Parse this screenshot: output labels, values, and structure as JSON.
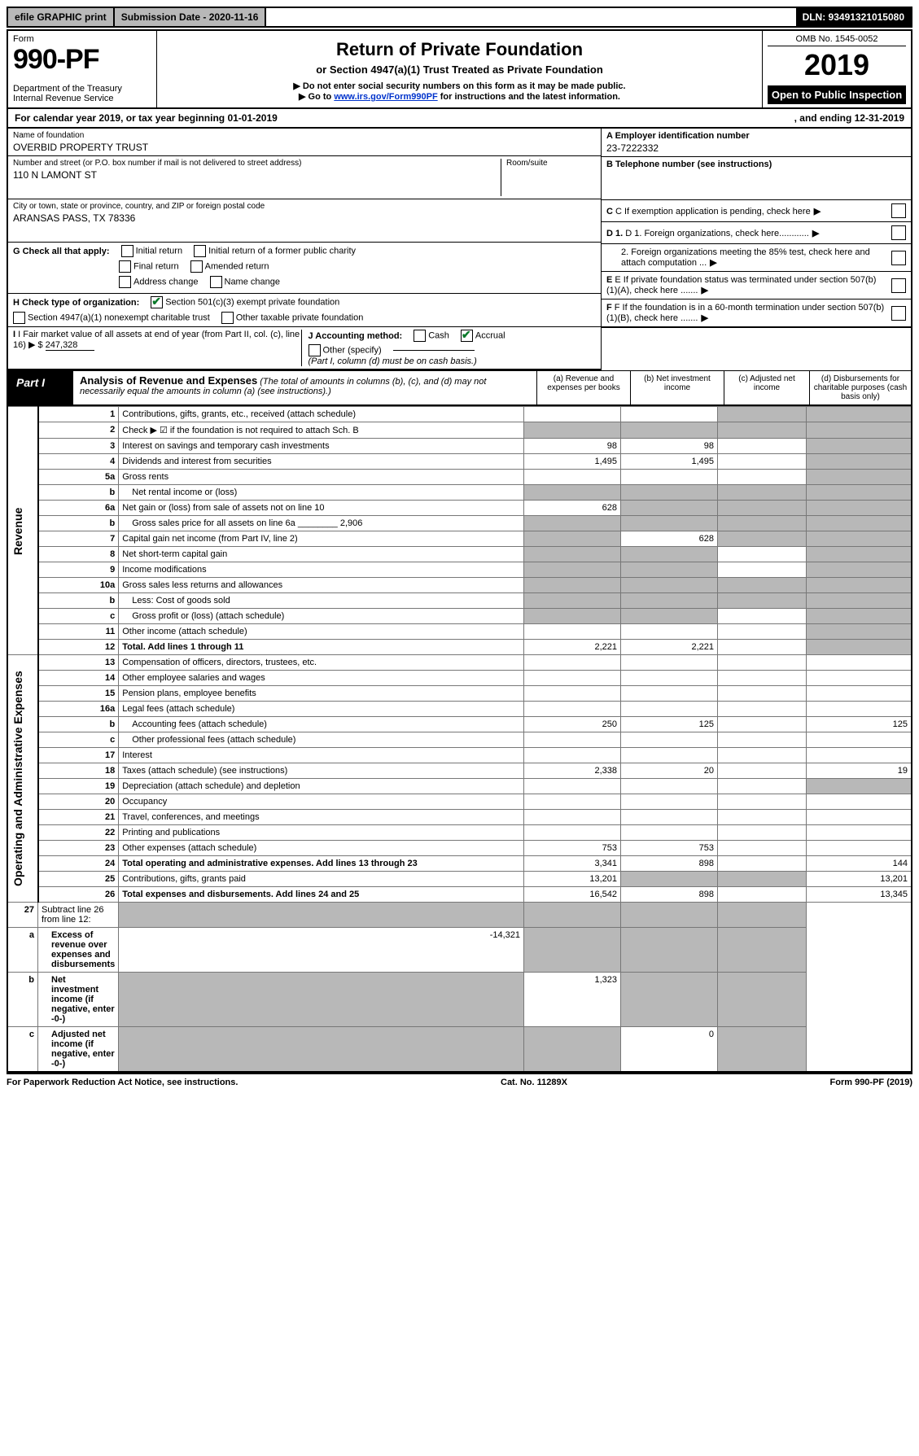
{
  "topbar": {
    "efile": "efile GRAPHIC print",
    "subdate_label": "Submission Date - 2020-11-16",
    "dln": "DLN: 93491321015080"
  },
  "header": {
    "form": "Form",
    "formno": "990-PF",
    "dept": "Department of the Treasury\nInternal Revenue Service",
    "title": "Return of Private Foundation",
    "subtitle": "or Section 4947(a)(1) Trust Treated as Private Foundation",
    "note1": "▶ Do not enter social security numbers on this form as it may be made public.",
    "note2_pre": "▶ Go to ",
    "note2_link": "www.irs.gov/Form990PF",
    "note2_post": " for instructions and the latest information.",
    "omb": "OMB No. 1545-0052",
    "year": "2019",
    "open": "Open to Public Inspection"
  },
  "calyear": {
    "left": "For calendar year 2019, or tax year beginning 01-01-2019",
    "right": ", and ending 12-31-2019"
  },
  "info": {
    "name_lbl": "Name of foundation",
    "name": "OVERBID PROPERTY TRUST",
    "addr_lbl": "Number and street (or P.O. box number if mail is not delivered to street address)",
    "room_lbl": "Room/suite",
    "addr": "110 N LAMONT ST",
    "city_lbl": "City or town, state or province, country, and ZIP or foreign postal code",
    "city": "ARANSAS PASS, TX  78336",
    "g_lbl": "G Check all that apply:",
    "g_opts": [
      "Initial return",
      "Initial return of a former public charity",
      "Final return",
      "Amended return",
      "Address change",
      "Name change"
    ],
    "h_lbl": "H Check type of organization:",
    "h_opt1": "Section 501(c)(3) exempt private foundation",
    "h_opt2": "Section 4947(a)(1) nonexempt charitable trust",
    "h_opt3": "Other taxable private foundation",
    "i_lbl": "I Fair market value of all assets at end of year (from Part II, col. (c), line 16) ▶ $",
    "i_val": "247,328",
    "j_lbl": "J Accounting method:",
    "j_cash": "Cash",
    "j_accrual": "Accrual",
    "j_other": "Other (specify)",
    "j_note": "(Part I, column (d) must be on cash basis.)",
    "a_lbl": "A Employer identification number",
    "a_val": "23-7222332",
    "b_lbl": "B Telephone number (see instructions)",
    "c_lbl": "C If exemption application is pending, check here",
    "d1_lbl": "D 1. Foreign organizations, check here............",
    "d2_lbl": "2. Foreign organizations meeting the 85% test, check here and attach computation ...",
    "e_lbl": "E If private foundation status was terminated under section 507(b)(1)(A), check here .......",
    "f_lbl": "F If the foundation is in a 60-month termination under section 507(b)(1)(B), check here ......."
  },
  "part1": {
    "label": "Part I",
    "title": "Analysis of Revenue and Expenses",
    "subtitle": "(The total of amounts in columns (b), (c), and (d) may not necessarily equal the amounts in column (a) (see instructions).)",
    "cols": {
      "a": "(a) Revenue and expenses per books",
      "b": "(b) Net investment income",
      "c": "(c) Adjusted net income",
      "d": "(d) Disbursements for charitable purposes (cash basis only)"
    }
  },
  "sections": {
    "revenue": "Revenue",
    "expenses": "Operating and Administrative Expenses"
  },
  "rows": [
    {
      "no": "1",
      "desc": "Contributions, gifts, grants, etc., received (attach schedule)",
      "a": "",
      "b": "",
      "c": "grey",
      "d": "grey"
    },
    {
      "no": "2",
      "desc": "Check ▶ ☑ if the foundation is not required to attach Sch. B",
      "a": "grey",
      "b": "grey",
      "c": "grey",
      "d": "grey",
      "checked": true
    },
    {
      "no": "3",
      "desc": "Interest on savings and temporary cash investments",
      "a": "98",
      "b": "98",
      "c": "",
      "d": "grey"
    },
    {
      "no": "4",
      "desc": "Dividends and interest from securities",
      "a": "1,495",
      "b": "1,495",
      "c": "",
      "d": "grey"
    },
    {
      "no": "5a",
      "desc": "Gross rents",
      "a": "",
      "b": "",
      "c": "",
      "d": "grey"
    },
    {
      "no": "b",
      "desc": "Net rental income or (loss)",
      "a": "grey",
      "b": "grey",
      "c": "grey",
      "d": "grey",
      "nested": true
    },
    {
      "no": "6a",
      "desc": "Net gain or (loss) from sale of assets not on line 10",
      "a": "628",
      "b": "grey",
      "c": "grey",
      "d": "grey"
    },
    {
      "no": "b",
      "desc": "Gross sales price for all assets on line 6a ________ 2,906",
      "a": "grey",
      "b": "grey",
      "c": "grey",
      "d": "grey",
      "nested": true
    },
    {
      "no": "7",
      "desc": "Capital gain net income (from Part IV, line 2)",
      "a": "grey",
      "b": "628",
      "c": "grey",
      "d": "grey"
    },
    {
      "no": "8",
      "desc": "Net short-term capital gain",
      "a": "grey",
      "b": "grey",
      "c": "",
      "d": "grey"
    },
    {
      "no": "9",
      "desc": "Income modifications",
      "a": "grey",
      "b": "grey",
      "c": "",
      "d": "grey"
    },
    {
      "no": "10a",
      "desc": "Gross sales less returns and allowances",
      "a": "grey",
      "b": "grey",
      "c": "grey",
      "d": "grey"
    },
    {
      "no": "b",
      "desc": "Less: Cost of goods sold",
      "a": "grey",
      "b": "grey",
      "c": "grey",
      "d": "grey",
      "nested": true
    },
    {
      "no": "c",
      "desc": "Gross profit or (loss) (attach schedule)",
      "a": "grey",
      "b": "grey",
      "c": "",
      "d": "grey",
      "nested": true
    },
    {
      "no": "11",
      "desc": "Other income (attach schedule)",
      "a": "",
      "b": "",
      "c": "",
      "d": "grey"
    },
    {
      "no": "12",
      "desc": "Total. Add lines 1 through 11",
      "a": "2,221",
      "b": "2,221",
      "c": "",
      "d": "grey",
      "bold": true
    }
  ],
  "rows2": [
    {
      "no": "13",
      "desc": "Compensation of officers, directors, trustees, etc.",
      "a": "",
      "b": "",
      "c": "",
      "d": ""
    },
    {
      "no": "14",
      "desc": "Other employee salaries and wages",
      "a": "",
      "b": "",
      "c": "",
      "d": ""
    },
    {
      "no": "15",
      "desc": "Pension plans, employee benefits",
      "a": "",
      "b": "",
      "c": "",
      "d": ""
    },
    {
      "no": "16a",
      "desc": "Legal fees (attach schedule)",
      "a": "",
      "b": "",
      "c": "",
      "d": ""
    },
    {
      "no": "b",
      "desc": "Accounting fees (attach schedule)",
      "a": "250",
      "b": "125",
      "c": "",
      "d": "125",
      "nested": true
    },
    {
      "no": "c",
      "desc": "Other professional fees (attach schedule)",
      "a": "",
      "b": "",
      "c": "",
      "d": "",
      "nested": true
    },
    {
      "no": "17",
      "desc": "Interest",
      "a": "",
      "b": "",
      "c": "",
      "d": ""
    },
    {
      "no": "18",
      "desc": "Taxes (attach schedule) (see instructions)",
      "a": "2,338",
      "b": "20",
      "c": "",
      "d": "19"
    },
    {
      "no": "19",
      "desc": "Depreciation (attach schedule) and depletion",
      "a": "",
      "b": "",
      "c": "",
      "d": "grey"
    },
    {
      "no": "20",
      "desc": "Occupancy",
      "a": "",
      "b": "",
      "c": "",
      "d": ""
    },
    {
      "no": "21",
      "desc": "Travel, conferences, and meetings",
      "a": "",
      "b": "",
      "c": "",
      "d": ""
    },
    {
      "no": "22",
      "desc": "Printing and publications",
      "a": "",
      "b": "",
      "c": "",
      "d": ""
    },
    {
      "no": "23",
      "desc": "Other expenses (attach schedule)",
      "a": "753",
      "b": "753",
      "c": "",
      "d": ""
    },
    {
      "no": "24",
      "desc": "Total operating and administrative expenses. Add lines 13 through 23",
      "a": "3,341",
      "b": "898",
      "c": "",
      "d": "144",
      "bold": true
    },
    {
      "no": "25",
      "desc": "Contributions, gifts, grants paid",
      "a": "13,201",
      "b": "grey",
      "c": "grey",
      "d": "13,201"
    },
    {
      "no": "26",
      "desc": "Total expenses and disbursements. Add lines 24 and 25",
      "a": "16,542",
      "b": "898",
      "c": "",
      "d": "13,345",
      "bold": true
    }
  ],
  "rows3": [
    {
      "no": "27",
      "desc": "Subtract line 26 from line 12:",
      "a": "grey",
      "b": "grey",
      "c": "grey",
      "d": "grey"
    },
    {
      "no": "a",
      "desc": "Excess of revenue over expenses and disbursements",
      "a": "-14,321",
      "b": "grey",
      "c": "grey",
      "d": "grey",
      "bold": true,
      "nested": true
    },
    {
      "no": "b",
      "desc": "Net investment income (if negative, enter -0-)",
      "a": "grey",
      "b": "1,323",
      "c": "grey",
      "d": "grey",
      "bold": true,
      "nested": true
    },
    {
      "no": "c",
      "desc": "Adjusted net income (if negative, enter -0-)",
      "a": "grey",
      "b": "grey",
      "c": "0",
      "d": "grey",
      "bold": true,
      "nested": true
    }
  ],
  "footer": {
    "left": "For Paperwork Reduction Act Notice, see instructions.",
    "mid": "Cat. No. 11289X",
    "right": "Form 990-PF (2019)"
  }
}
